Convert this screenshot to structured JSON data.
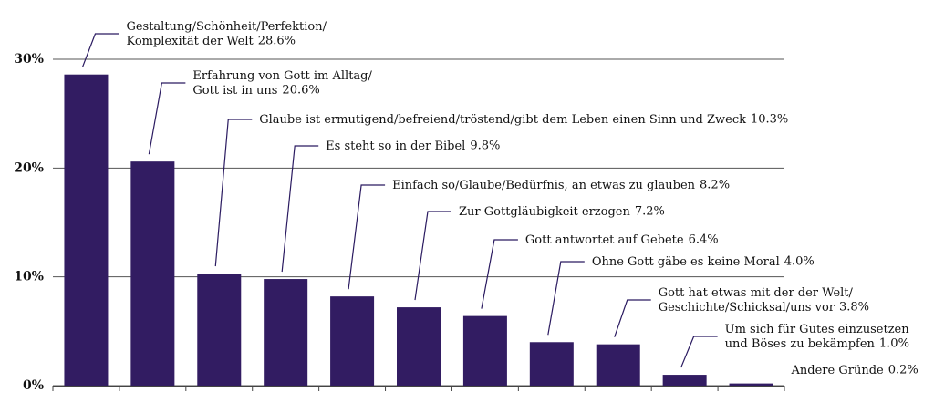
{
  "chart_data": {
    "type": "bar",
    "categories": [
      "Gestaltung/Schönheit/Perfektion/\nKomplexität der Welt",
      "Erfahrung von Gott im Alltag/\nGott ist in uns",
      "Glaube ist ermutigend/befreiend/tröstend/gibt dem Leben einen Sinn und Zweck",
      "Es steht so in der Bibel",
      "Einfach so/Glaube/Bedürfnis, an etwas zu glauben",
      "Zur Gottgläubigkeit erzogen",
      "Gott antwortet auf Gebete",
      "Ohne Gott gäbe es keine Moral",
      "Gott hat etwas mit der der Welt/\nGeschichte/Schicksal/uns vor",
      "Um sich für Gutes einzusetzen\nund Böses zu bekämpfen",
      "Andere Gründe"
    ],
    "values": [
      28.6,
      20.6,
      10.3,
      9.8,
      8.2,
      7.2,
      6.4,
      4.0,
      3.8,
      1.0,
      0.2
    ],
    "value_labels": [
      "28.6%",
      "20.6%",
      "10.3%",
      "9.8%",
      "8.2%",
      "7.2%",
      "6.4%",
      "4.0%",
      "3.8%",
      "1.0%",
      "0.2%"
    ],
    "color": "#321c62",
    "ylim": [
      0,
      30
    ],
    "yticks": [
      {
        "value": 0,
        "label": "0%"
      },
      {
        "value": 10,
        "label": "10%"
      },
      {
        "value": 20,
        "label": "20%"
      },
      {
        "value": 30,
        "label": "30%"
      }
    ],
    "grid": true
  }
}
